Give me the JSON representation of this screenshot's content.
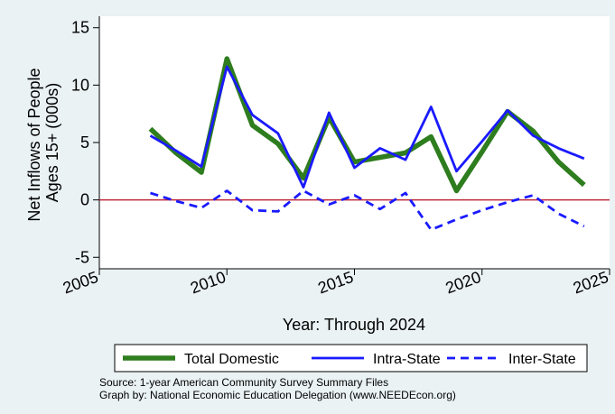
{
  "chart_data": {
    "type": "line",
    "xlabel": "Year: Through 2024",
    "ylabel_lines": [
      "Net Inflows of People",
      "Ages 15+ (000s)"
    ],
    "xlim": [
      2005,
      2025
    ],
    "ylim": [
      -6,
      16
    ],
    "x_ticks": [
      2005,
      2010,
      2015,
      2020,
      2025
    ],
    "y_ticks": [
      -5,
      0,
      5,
      10,
      15
    ],
    "grid": false,
    "reference_line": {
      "y": 0,
      "color": "#c0283a"
    },
    "legend_placement": "bottom",
    "x": [
      2007,
      2008,
      2009,
      2010,
      2011,
      2012,
      2013,
      2014,
      2015,
      2016,
      2017,
      2018,
      2019,
      2020,
      2021,
      2022,
      2023,
      2024
    ],
    "series": [
      {
        "name": "Total Domestic",
        "color": "#2e7d1e",
        "style": "solid-thick",
        "values": [
          6.2,
          4.1,
          2.4,
          12.3,
          6.5,
          4.9,
          1.9,
          7.2,
          3.3,
          3.7,
          4.1,
          5.5,
          0.8,
          4.2,
          7.7,
          6.0,
          3.3,
          1.3
        ]
      },
      {
        "name": "Intra-State",
        "color": "#1a1aff",
        "style": "solid",
        "values": [
          5.6,
          4.3,
          2.9,
          11.6,
          7.4,
          5.8,
          1.1,
          7.6,
          2.8,
          4.5,
          3.5,
          8.1,
          2.5,
          5.1,
          7.8,
          5.6,
          4.5,
          3.6
        ]
      },
      {
        "name": "Inter-State",
        "color": "#1a1aff",
        "style": "dashed",
        "values": [
          0.6,
          -0.1,
          -0.7,
          0.8,
          -0.9,
          -1.0,
          0.8,
          -0.4,
          0.4,
          -0.8,
          0.6,
          -2.6,
          -1.7,
          -0.9,
          -0.2,
          0.4,
          -1.2,
          -2.3
        ]
      }
    ]
  },
  "notes": {
    "source": "Source: 1-year American Community Survey Summary Files",
    "credit": "Graph by: National Economic Education Delegation (www.NEEDEcon.org)"
  }
}
